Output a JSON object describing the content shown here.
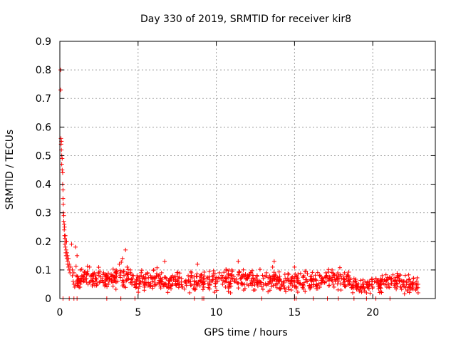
{
  "chart_data": {
    "type": "scatter",
    "title": "Day 330 of 2019, SRMTID for receiver kir8",
    "xlabel": "GPS time / hours",
    "ylabel": "SRMTID / TECUs",
    "xlim": [
      0,
      24
    ],
    "ylim": [
      0,
      0.9
    ],
    "xticks": [
      0,
      5,
      10,
      15,
      20
    ],
    "yticks": [
      0,
      0.1,
      0.2,
      0.3,
      0.4,
      0.5,
      0.6,
      0.7,
      0.8,
      0.9
    ],
    "xtick_labels": [
      "0",
      "5",
      "10",
      "15",
      "20"
    ],
    "ytick_labels": [
      "0",
      "0.1",
      "0.2",
      "0.3",
      "0.4",
      "0.5",
      "0.6",
      "0.7",
      "0.8",
      "0.9"
    ],
    "grid": true,
    "marker": "+",
    "color": "#ff0000",
    "series": [
      {
        "name": "SRMTID",
        "points": [
          [
            0.05,
            0.8
          ],
          [
            0.05,
            0.73
          ],
          [
            0.07,
            0.56
          ],
          [
            0.08,
            0.54
          ],
          [
            0.1,
            0.55
          ],
          [
            0.1,
            0.52
          ],
          [
            0.12,
            0.5
          ],
          [
            0.12,
            0.47
          ],
          [
            0.15,
            0.49
          ],
          [
            0.15,
            0.45
          ],
          [
            0.18,
            0.44
          ],
          [
            0.18,
            0.4
          ],
          [
            0.2,
            0.38
          ],
          [
            0.2,
            0.35
          ],
          [
            0.22,
            0.33
          ],
          [
            0.22,
            0.3
          ],
          [
            0.25,
            0.29
          ],
          [
            0.25,
            0.27
          ],
          [
            0.28,
            0.26
          ],
          [
            0.28,
            0.24
          ],
          [
            0.3,
            0.25
          ],
          [
            0.3,
            0.22
          ],
          [
            0.32,
            0.21
          ],
          [
            0.32,
            0.19
          ],
          [
            0.35,
            0.22
          ],
          [
            0.35,
            0.18
          ],
          [
            0.38,
            0.2
          ],
          [
            0.38,
            0.16
          ],
          [
            0.4,
            0.17
          ],
          [
            0.4,
            0.15
          ],
          [
            0.43,
            0.2
          ],
          [
            0.45,
            0.16
          ],
          [
            0.45,
            0.14
          ],
          [
            0.48,
            0.15
          ],
          [
            0.5,
            0.13
          ],
          [
            0.5,
            0.12
          ],
          [
            0.55,
            0.11
          ],
          [
            0.55,
            0.14
          ],
          [
            0.6,
            0.12
          ],
          [
            0.6,
            0.1
          ],
          [
            0.65,
            0.09
          ],
          [
            0.7,
            0.11
          ],
          [
            0.75,
            0.19
          ],
          [
            0.8,
            0.1
          ],
          [
            0.8,
            0.08
          ],
          [
            0.85,
            0.06
          ],
          [
            0.9,
            0.05
          ],
          [
            0.9,
            0.09
          ],
          [
            0.95,
            0.04
          ],
          [
            1.0,
            0.05
          ],
          [
            1.0,
            0.18
          ],
          [
            1.05,
            0.08
          ],
          [
            1.1,
            0.06
          ],
          [
            1.1,
            0.15
          ],
          [
            1.2,
            0.07
          ],
          [
            1.3,
            0.05
          ],
          [
            1.3,
            0.1
          ],
          [
            1.4,
            0.08
          ],
          [
            1.5,
            0.06
          ],
          [
            1.6,
            0.09
          ],
          [
            1.7,
            0.07
          ],
          [
            1.8,
            0.05
          ],
          [
            1.9,
            0.11
          ],
          [
            2.0,
            0.08
          ],
          [
            2.1,
            0.06
          ],
          [
            2.2,
            0.09
          ],
          [
            2.3,
            0.07
          ],
          [
            2.4,
            0.05
          ],
          [
            2.5,
            0.08
          ],
          [
            2.6,
            0.06
          ],
          [
            2.7,
            0.07
          ],
          [
            2.8,
            0.09
          ],
          [
            2.9,
            0.06
          ],
          [
            3.0,
            0.08
          ],
          [
            3.1,
            0.05
          ],
          [
            3.2,
            0.07
          ],
          [
            3.3,
            0.06
          ],
          [
            3.4,
            0.08
          ],
          [
            3.5,
            0.07
          ],
          [
            3.6,
            0.1
          ],
          [
            3.7,
            0.06
          ],
          [
            3.8,
            0.12
          ],
          [
            3.9,
            0.09
          ],
          [
            4.0,
            0.14
          ],
          [
            4.1,
            0.08
          ],
          [
            4.2,
            0.17
          ],
          [
            4.3,
            0.11
          ],
          [
            4.4,
            0.07
          ],
          [
            4.5,
            0.1
          ],
          [
            4.6,
            0.05
          ],
          [
            4.7,
            0.08
          ],
          [
            4.8,
            0.06
          ],
          [
            4.9,
            0.04
          ],
          [
            5.0,
            0.07
          ],
          [
            5.1,
            0.05
          ],
          [
            5.2,
            0.08
          ],
          [
            5.3,
            0.06
          ],
          [
            5.4,
            0.04
          ],
          [
            5.5,
            0.07
          ],
          [
            5.6,
            0.09
          ],
          [
            5.7,
            0.05
          ],
          [
            5.8,
            0.08
          ],
          [
            5.9,
            0.06
          ],
          [
            6.0,
            0.1
          ],
          [
            6.1,
            0.07
          ],
          [
            6.2,
            0.05
          ],
          [
            6.3,
            0.08
          ],
          [
            6.4,
            0.06
          ],
          [
            6.5,
            0.09
          ],
          [
            6.6,
            0.05
          ],
          [
            6.7,
            0.13
          ],
          [
            6.8,
            0.07
          ],
          [
            6.9,
            0.04
          ],
          [
            7.0,
            0.06
          ],
          [
            7.2,
            0.08
          ],
          [
            7.4,
            0.05
          ],
          [
            7.6,
            0.07
          ],
          [
            7.8,
            0.04
          ],
          [
            8.0,
            0.06
          ],
          [
            8.2,
            0.08
          ],
          [
            8.4,
            0.09
          ],
          [
            8.6,
            0.05
          ],
          [
            8.8,
            0.12
          ],
          [
            9.0,
            0.06
          ],
          [
            9.2,
            0.04
          ],
          [
            9.4,
            0.07
          ],
          [
            9.6,
            0.05
          ],
          [
            9.8,
            0.08
          ],
          [
            10.0,
            0.06
          ],
          [
            10.2,
            0.09
          ],
          [
            10.4,
            0.05
          ],
          [
            10.6,
            0.07
          ],
          [
            10.8,
            0.08
          ],
          [
            11.0,
            0.1
          ],
          [
            11.2,
            0.06
          ],
          [
            11.4,
            0.13
          ],
          [
            11.6,
            0.08
          ],
          [
            11.8,
            0.05
          ],
          [
            12.0,
            0.07
          ],
          [
            12.2,
            0.09
          ],
          [
            12.4,
            0.06
          ],
          [
            12.6,
            0.08
          ],
          [
            12.8,
            0.05
          ],
          [
            13.0,
            0.07
          ],
          [
            13.2,
            0.09
          ],
          [
            13.4,
            0.06
          ],
          [
            13.6,
            0.11
          ],
          [
            13.7,
            0.13
          ],
          [
            13.8,
            0.08
          ],
          [
            14.0,
            0.06
          ],
          [
            14.2,
            0.05
          ],
          [
            14.4,
            0.07
          ],
          [
            14.6,
            0.04
          ],
          [
            14.8,
            0.06
          ],
          [
            15.0,
            0.11
          ],
          [
            15.2,
            0.07
          ],
          [
            15.4,
            0.05
          ],
          [
            15.6,
            0.08
          ],
          [
            15.8,
            0.06
          ],
          [
            16.0,
            0.04
          ],
          [
            16.2,
            0.07
          ],
          [
            16.4,
            0.05
          ],
          [
            16.6,
            0.08
          ],
          [
            16.8,
            0.06
          ],
          [
            17.0,
            0.09
          ],
          [
            17.2,
            0.07
          ],
          [
            17.4,
            0.1
          ],
          [
            17.6,
            0.06
          ],
          [
            17.8,
            0.08
          ],
          [
            18.0,
            0.07
          ],
          [
            18.2,
            0.09
          ],
          [
            18.4,
            0.06
          ],
          [
            18.6,
            0.05
          ],
          [
            18.8,
            0.07
          ],
          [
            19.0,
            0.04
          ],
          [
            19.2,
            0.03
          ],
          [
            19.4,
            0.05
          ],
          [
            19.6,
            0.02
          ],
          [
            19.8,
            0.06
          ],
          [
            20.0,
            0.04
          ],
          [
            20.2,
            0.07
          ],
          [
            20.4,
            0.05
          ],
          [
            20.6,
            0.08
          ],
          [
            20.8,
            0.06
          ],
          [
            21.0,
            0.04
          ],
          [
            21.2,
            0.07
          ],
          [
            21.4,
            0.05
          ],
          [
            21.6,
            0.08
          ],
          [
            21.8,
            0.04
          ],
          [
            22.0,
            0.06
          ],
          [
            22.2,
            0.03
          ],
          [
            22.4,
            0.05
          ],
          [
            22.6,
            0.07
          ],
          [
            22.8,
            0.04
          ],
          [
            22.9,
            0.05
          ],
          [
            22.9,
            0.02
          ],
          [
            0.2,
            0.0
          ],
          [
            0.6,
            0.0
          ],
          [
            0.9,
            0.0
          ],
          [
            1.1,
            0.0
          ],
          [
            3.0,
            0.0
          ],
          [
            3.9,
            0.0
          ],
          [
            4.8,
            0.0
          ],
          [
            8.6,
            0.0
          ],
          [
            9.1,
            0.0
          ],
          [
            9.2,
            0.0
          ],
          [
            12.9,
            0.0
          ],
          [
            15.0,
            0.0
          ],
          [
            15.1,
            0.0
          ],
          [
            16.2,
            0.0
          ],
          [
            17.1,
            0.0
          ],
          [
            17.8,
            0.0
          ],
          [
            18.8,
            0.0
          ],
          [
            19.6,
            0.0
          ],
          [
            20.2,
            0.0
          ],
          [
            21.1,
            0.0
          ]
        ]
      }
    ],
    "density_profile": [
      [
        1.0,
        0.075,
        0.025
      ],
      [
        2.0,
        0.07,
        0.022
      ],
      [
        3.0,
        0.068,
        0.02
      ],
      [
        4.0,
        0.075,
        0.025
      ],
      [
        5.0,
        0.062,
        0.02
      ],
      [
        6.0,
        0.065,
        0.02
      ],
      [
        7.0,
        0.058,
        0.02
      ],
      [
        8.0,
        0.055,
        0.02
      ],
      [
        9.0,
        0.058,
        0.02
      ],
      [
        10.0,
        0.06,
        0.022
      ],
      [
        11.0,
        0.065,
        0.022
      ],
      [
        12.0,
        0.065,
        0.022
      ],
      [
        13.0,
        0.062,
        0.022
      ],
      [
        14.0,
        0.065,
        0.022
      ],
      [
        15.0,
        0.06,
        0.022
      ],
      [
        16.0,
        0.06,
        0.022
      ],
      [
        17.0,
        0.068,
        0.022
      ],
      [
        18.0,
        0.07,
        0.022
      ],
      [
        18.8,
        0.055,
        0.02
      ],
      [
        19.4,
        0.04,
        0.015
      ],
      [
        20.0,
        0.05,
        0.018
      ],
      [
        21.0,
        0.055,
        0.02
      ],
      [
        22.0,
        0.05,
        0.018
      ],
      [
        22.9,
        0.045,
        0.016
      ]
    ]
  }
}
